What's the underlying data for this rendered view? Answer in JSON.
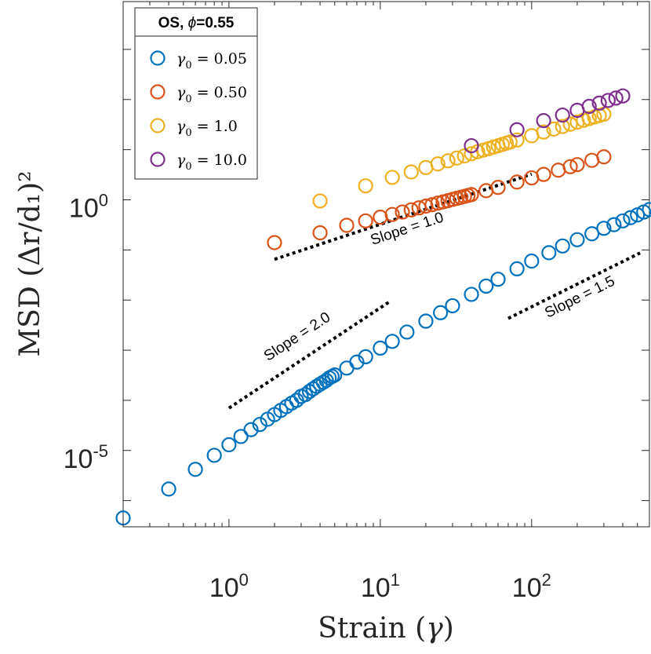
{
  "chart_data": {
    "type": "scatter",
    "x_scale": "log",
    "y_scale": "log",
    "xlabel": "Strain (γ)",
    "ylabel": "MSD (Δr/d₁)²",
    "xlim": [
      0.2,
      600
    ],
    "ylim": [
      3e-07,
      9000
    ],
    "x_ticks": [
      {
        "base": "10",
        "exp": "0"
      },
      {
        "base": "10",
        "exp": "1"
      },
      {
        "base": "10",
        "exp": "2"
      }
    ],
    "y_ticks": [
      {
        "base": "10",
        "exp": "-5"
      },
      {
        "base": "10",
        "exp": "0"
      }
    ],
    "legend_title": "OS, ϕ=0.55",
    "series": [
      {
        "name": "γ0 = 0.05",
        "gamma0": "0.05",
        "color": "#0072BD",
        "points": [
          [
            0.2,
            4.5e-07
          ],
          [
            0.4,
            1.7e-06
          ],
          [
            0.6,
            4.2e-06
          ],
          [
            0.8,
            8e-06
          ],
          [
            1.0,
            1.3e-05
          ],
          [
            1.2,
            1.9e-05
          ],
          [
            1.4,
            2.6e-05
          ],
          [
            1.6,
            3.3e-05
          ],
          [
            1.8,
            4.2e-05
          ],
          [
            2.0,
            5.2e-05
          ],
          [
            2.2,
            6.3e-05
          ],
          [
            2.4,
            7.5e-05
          ],
          [
            2.6,
            8.8e-05
          ],
          [
            2.8,
            0.0001
          ],
          [
            3.0,
            0.00012
          ],
          [
            3.2,
            0.00013
          ],
          [
            3.4,
            0.00015
          ],
          [
            3.6,
            0.00017
          ],
          [
            3.8,
            0.00019
          ],
          [
            4.0,
            0.00021
          ],
          [
            4.2,
            0.00023
          ],
          [
            4.4,
            0.00025
          ],
          [
            4.6,
            0.00028
          ],
          [
            4.8,
            0.0003
          ],
          [
            5.0,
            0.00032
          ],
          [
            6.0,
            0.00044
          ],
          [
            7.0,
            0.00058
          ],
          [
            8.0,
            0.00074
          ],
          [
            10,
            0.0011
          ],
          [
            12,
            0.0015
          ],
          [
            15,
            0.0023
          ],
          [
            20,
            0.0038
          ],
          [
            25,
            0.0056
          ],
          [
            30,
            0.0077
          ],
          [
            40,
            0.013
          ],
          [
            50,
            0.019
          ],
          [
            60,
            0.026
          ],
          [
            80,
            0.042
          ],
          [
            100,
            0.06
          ],
          [
            130,
            0.088
          ],
          [
            160,
            0.12
          ],
          [
            200,
            0.16
          ],
          [
            250,
            0.21
          ],
          [
            300,
            0.27
          ],
          [
            350,
            0.32
          ],
          [
            400,
            0.38
          ],
          [
            450,
            0.44
          ],
          [
            500,
            0.5
          ],
          [
            550,
            0.57
          ],
          [
            600,
            0.64
          ]
        ]
      },
      {
        "name": "γ0 = 0.50",
        "gamma0": "0.50",
        "color": "#D95319",
        "points": [
          [
            2,
            0.14
          ],
          [
            4,
            0.22
          ],
          [
            6,
            0.31
          ],
          [
            8,
            0.38
          ],
          [
            10,
            0.45
          ],
          [
            12,
            0.51
          ],
          [
            14,
            0.57
          ],
          [
            16,
            0.63
          ],
          [
            18,
            0.69
          ],
          [
            20,
            0.75
          ],
          [
            22,
            0.8
          ],
          [
            24,
            0.86
          ],
          [
            26,
            0.91
          ],
          [
            28,
            0.96
          ],
          [
            30,
            1.02
          ],
          [
            32,
            1.07
          ],
          [
            34,
            1.12
          ],
          [
            36,
            1.17
          ],
          [
            38,
            1.22
          ],
          [
            40,
            1.27
          ],
          [
            50,
            1.52
          ],
          [
            60,
            1.77
          ],
          [
            80,
            2.26
          ],
          [
            100,
            2.74
          ],
          [
            120,
            3.21
          ],
          [
            150,
            3.9
          ],
          [
            180,
            4.58
          ],
          [
            200,
            5.03
          ],
          [
            250,
            6.13
          ],
          [
            300,
            7.2
          ]
        ]
      },
      {
        "name": "γ0 = 1.0",
        "gamma0": "1.0",
        "color": "#EDB120",
        "points": [
          [
            4,
            0.95
          ],
          [
            8,
            1.9
          ],
          [
            12,
            2.8
          ],
          [
            16,
            3.6
          ],
          [
            20,
            4.4
          ],
          [
            24,
            5.2
          ],
          [
            28,
            6.0
          ],
          [
            32,
            6.8
          ],
          [
            36,
            7.5
          ],
          [
            40,
            8.3
          ],
          [
            44,
            9.1
          ],
          [
            48,
            9.8
          ],
          [
            52,
            10.5
          ],
          [
            56,
            11.3
          ],
          [
            60,
            12.0
          ],
          [
            64,
            12.7
          ],
          [
            68,
            13.5
          ],
          [
            72,
            14.2
          ],
          [
            80,
            15.6
          ],
          [
            100,
            19.0
          ],
          [
            120,
            22.5
          ],
          [
            140,
            25.8
          ],
          [
            160,
            29.0
          ],
          [
            180,
            32.3
          ],
          [
            200,
            35.5
          ],
          [
            220,
            38.6
          ],
          [
            240,
            41.8
          ],
          [
            260,
            44.9
          ],
          [
            280,
            48.0
          ],
          [
            300,
            51.0
          ]
        ]
      },
      {
        "name": "γ0 = 10.0",
        "gamma0": "10.0",
        "color": "#7E2F8E",
        "points": [
          [
            40,
            12
          ],
          [
            80,
            25
          ],
          [
            120,
            38
          ],
          [
            160,
            49
          ],
          [
            200,
            61
          ],
          [
            240,
            73
          ],
          [
            280,
            85
          ],
          [
            320,
            96
          ],
          [
            360,
            107
          ],
          [
            400,
            118
          ]
        ]
      }
    ],
    "slope_guides": [
      {
        "label": "Slope = 1.0",
        "slope": 1.0,
        "x_from": 2,
        "x_to": 100,
        "y_at_x_from": 0.065
      },
      {
        "label": "Slope = 1.5",
        "slope": 1.5,
        "x_from": 70,
        "x_to": 520,
        "y_at_x_from": 0.0043
      },
      {
        "label": "Slope = 2.0",
        "slope": 2.0,
        "x_from": 1,
        "x_to": 11.5,
        "y_at_x_from": 7e-05
      }
    ]
  }
}
